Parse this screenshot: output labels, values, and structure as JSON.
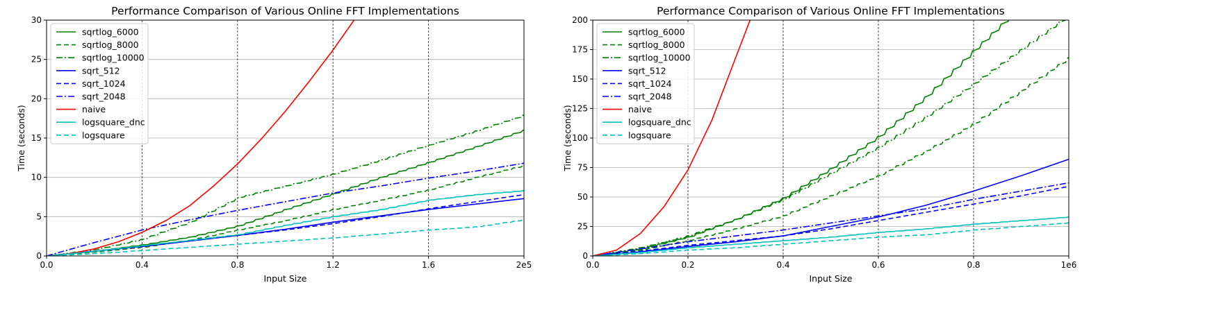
{
  "chart_data": [
    {
      "type": "line",
      "title": "Performance Comparison of Various Online FFT Implementations",
      "xlabel": "Input Size",
      "ylabel": "Time (seconds)",
      "xlim": [
        0,
        200000
      ],
      "ylim": [
        0,
        30
      ],
      "x_ticks": [
        0,
        40000,
        80000,
        120000,
        160000,
        200000
      ],
      "x_tick_labels": [
        "0.0",
        "0.4",
        "0.8",
        "1.2",
        "1.6",
        "2e5"
      ],
      "y_ticks": [
        0,
        5,
        10,
        15,
        20,
        25,
        30
      ],
      "y_tick_labels": [
        "0",
        "5",
        "10",
        "15",
        "20",
        "25",
        "30"
      ],
      "grid": "horizontal solid, vertical dashed at major x ticks",
      "legend": "top-left",
      "series": [
        {
          "name": "sqrtlog_6000",
          "color": "#008000",
          "dash": "solid",
          "step": true,
          "x": [
            0,
            20000,
            40000,
            60000,
            80000,
            100000,
            120000,
            140000,
            160000,
            180000,
            200000
          ],
          "y": [
            0,
            0.6,
            1.4,
            2.4,
            3.8,
            5.9,
            7.9,
            10.0,
            11.9,
            13.9,
            16.0
          ]
        },
        {
          "name": "sqrtlog_8000",
          "color": "#008000",
          "dash": "dashed",
          "step": true,
          "x": [
            0,
            20000,
            40000,
            60000,
            80000,
            100000,
            120000,
            140000,
            160000,
            180000,
            200000
          ],
          "y": [
            0,
            0.5,
            1.1,
            2.0,
            3.3,
            4.5,
            5.9,
            7.1,
            8.4,
            10.0,
            11.5
          ]
        },
        {
          "name": "sqrtlog_10000",
          "color": "#008000",
          "dash": "dashdot",
          "step": true,
          "x": [
            0,
            20000,
            40000,
            60000,
            80000,
            100000,
            120000,
            140000,
            160000,
            180000,
            200000
          ],
          "y": [
            0,
            0.8,
            2.1,
            4.3,
            7.4,
            8.9,
            10.4,
            12.2,
            14.1,
            15.9,
            17.9
          ]
        },
        {
          "name": "sqrt_512",
          "color": "#0000ff",
          "dash": "solid",
          "step": false,
          "x": [
            0,
            20000,
            40000,
            60000,
            80000,
            100000,
            120000,
            140000,
            160000,
            180000,
            200000
          ],
          "y": [
            0,
            0.6,
            1.2,
            1.9,
            2.6,
            3.4,
            4.3,
            5.1,
            5.9,
            6.6,
            7.3
          ]
        },
        {
          "name": "sqrt_1024",
          "color": "#0000ff",
          "dash": "dashed",
          "step": false,
          "x": [
            0,
            20000,
            40000,
            60000,
            80000,
            100000,
            120000,
            140000,
            160000,
            180000,
            200000
          ],
          "y": [
            0,
            0.6,
            1.2,
            1.9,
            2.6,
            3.3,
            4.1,
            5.0,
            6.0,
            6.9,
            7.8
          ]
        },
        {
          "name": "sqrt_2048",
          "color": "#0000ff",
          "dash": "dashdot",
          "step": false,
          "x": [
            0,
            20000,
            40000,
            60000,
            80000,
            100000,
            120000,
            140000,
            160000,
            180000,
            200000
          ],
          "y": [
            0,
            1.7,
            3.3,
            4.6,
            5.8,
            6.9,
            8.0,
            8.9,
            9.9,
            10.8,
            11.8
          ]
        },
        {
          "name": "naive",
          "color": "#ff0000",
          "dash": "solid",
          "step": false,
          "x": [
            0,
            10000,
            20000,
            30000,
            40000,
            50000,
            60000,
            70000,
            80000,
            90000,
            100000,
            110000,
            120000,
            130000
          ],
          "y": [
            0,
            0.3,
            0.9,
            1.8,
            3.0,
            4.5,
            6.4,
            8.9,
            11.7,
            14.9,
            18.4,
            22.2,
            26.2,
            30.5
          ]
        },
        {
          "name": "logsquare_dnc",
          "color": "#00bfbf",
          "dash": "solid",
          "step": true,
          "x": [
            0,
            20000,
            40000,
            60000,
            80000,
            100000,
            120000,
            140000,
            160000,
            180000,
            200000
          ],
          "y": [
            0,
            0.6,
            1.3,
            2.0,
            2.7,
            3.9,
            5.0,
            5.9,
            7.1,
            7.8,
            8.3
          ]
        },
        {
          "name": "logsquare",
          "color": "#00bfbf",
          "dash": "dashed",
          "step": true,
          "x": [
            0,
            20000,
            40000,
            60000,
            80000,
            100000,
            120000,
            140000,
            160000,
            180000,
            200000
          ],
          "y": [
            0,
            0.3,
            0.7,
            1.1,
            1.5,
            1.9,
            2.3,
            2.8,
            3.3,
            3.7,
            4.6
          ]
        }
      ]
    },
    {
      "type": "line",
      "title": "Performance Comparison of Various Online FFT Implementations",
      "xlabel": "Input Size",
      "ylabel": "Time (seconds)",
      "xlim": [
        0,
        1000000
      ],
      "ylim": [
        0,
        200
      ],
      "x_ticks": [
        0,
        200000,
        400000,
        600000,
        800000,
        1000000
      ],
      "x_tick_labels": [
        "0.0",
        "0.2",
        "0.4",
        "0.6",
        "0.8",
        "1e6"
      ],
      "y_ticks": [
        0,
        25,
        50,
        75,
        100,
        125,
        150,
        175,
        200
      ],
      "y_tick_labels": [
        "0",
        "25",
        "50",
        "75",
        "100",
        "125",
        "150",
        "175",
        "200"
      ],
      "grid": "horizontal solid, vertical dashed at major x ticks",
      "legend": "top-left",
      "series": [
        {
          "name": "sqrtlog_6000",
          "color": "#008000",
          "dash": "solid",
          "step": true,
          "x": [
            0,
            100000,
            200000,
            300000,
            400000,
            500000,
            600000,
            700000,
            800000,
            900000,
            1000000
          ],
          "y": [
            0,
            6,
            16,
            31,
            49,
            74,
            101,
            135,
            174,
            212,
            250
          ]
        },
        {
          "name": "sqrtlog_8000",
          "color": "#008000",
          "dash": "dashed",
          "step": true,
          "x": [
            0,
            100000,
            200000,
            300000,
            400000,
            500000,
            600000,
            700000,
            800000,
            900000,
            1000000
          ],
          "y": [
            0,
            5,
            13,
            23,
            34,
            51,
            68,
            89,
            112,
            140,
            168
          ]
        },
        {
          "name": "sqrtlog_10000",
          "color": "#008000",
          "dash": "dashdot",
          "step": true,
          "x": [
            0,
            100000,
            200000,
            300000,
            400000,
            500000,
            600000,
            700000,
            800000,
            900000,
            1000000
          ],
          "y": [
            0,
            7,
            17,
            31,
            48,
            70,
            92,
            118,
            146,
            175,
            204
          ]
        },
        {
          "name": "sqrt_512",
          "color": "#0000ff",
          "dash": "solid",
          "step": false,
          "x": [
            0,
            100000,
            200000,
            300000,
            400000,
            500000,
            600000,
            700000,
            800000,
            900000,
            1000000
          ],
          "y": [
            0,
            3.5,
            8,
            12,
            17,
            25,
            33,
            43,
            55,
            68,
            82
          ]
        },
        {
          "name": "sqrt_1024",
          "color": "#0000ff",
          "dash": "dashed",
          "step": false,
          "x": [
            0,
            100000,
            200000,
            300000,
            400000,
            500000,
            600000,
            700000,
            800000,
            900000,
            1000000
          ],
          "y": [
            0,
            4,
            9,
            13,
            17,
            23,
            30,
            37,
            44,
            51,
            59
          ]
        },
        {
          "name": "sqrt_2048",
          "color": "#0000ff",
          "dash": "dashdot",
          "step": false,
          "x": [
            0,
            100000,
            200000,
            300000,
            400000,
            500000,
            600000,
            700000,
            800000,
            900000,
            1000000
          ],
          "y": [
            0,
            6,
            12,
            17,
            22,
            28,
            34,
            40,
            48,
            55,
            62
          ]
        },
        {
          "name": "naive",
          "color": "#ff0000",
          "dash": "solid",
          "step": false,
          "x": [
            0,
            50000,
            100000,
            150000,
            200000,
            250000,
            300000,
            340000
          ],
          "y": [
            0,
            5,
            19,
            42,
            73,
            115,
            168,
            210
          ]
        },
        {
          "name": "logsquare_dnc",
          "color": "#00bfbf",
          "dash": "solid",
          "step": true,
          "x": [
            0,
            100000,
            200000,
            300000,
            400000,
            500000,
            600000,
            700000,
            800000,
            900000,
            1000000
          ],
          "y": [
            0,
            3,
            7,
            10,
            13,
            16,
            20,
            23,
            27,
            30,
            33
          ]
        },
        {
          "name": "logsquare",
          "color": "#00bfbf",
          "dash": "dashed",
          "step": true,
          "x": [
            0,
            100000,
            200000,
            300000,
            400000,
            500000,
            600000,
            700000,
            800000,
            900000,
            1000000
          ],
          "y": [
            0,
            2,
            5,
            7,
            10,
            13,
            16,
            18,
            22,
            25,
            28
          ]
        }
      ]
    }
  ]
}
